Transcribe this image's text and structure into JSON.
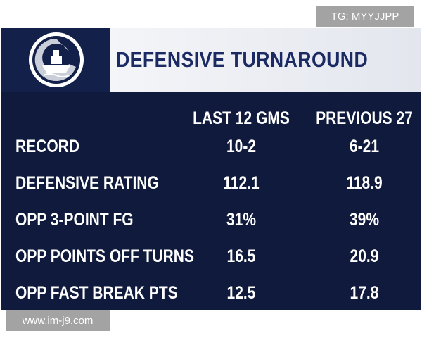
{
  "watermark_top": "TG: MYYJJPP",
  "header": {
    "title": "DEFENSIVE TURNAROUND"
  },
  "table": {
    "columns": [
      "LAST 12 GMS",
      "PREVIOUS 27"
    ],
    "rows": [
      [
        "RECORD",
        "10-2",
        "6-21"
      ],
      [
        "DEFENSIVE RATING",
        "112.1",
        "118.9"
      ],
      [
        "OPP 3-POINT FG",
        "31%",
        "39%"
      ],
      [
        "OPP POINTS OFF TURNS",
        "16.5",
        "20.9"
      ],
      [
        "OPP FAST BREAK PTS",
        "12.5",
        "17.8"
      ]
    ]
  },
  "watermark_bottom": "www.im-j9.com"
}
